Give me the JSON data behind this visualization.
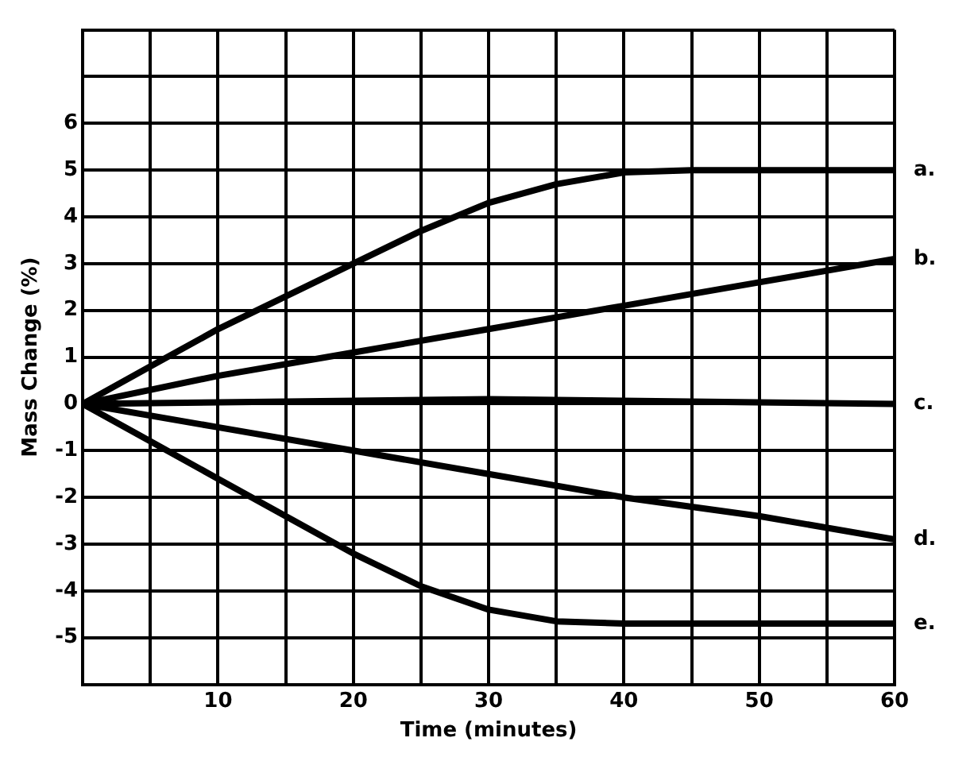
{
  "chart_data": {
    "type": "line",
    "xlabel": "Time (minutes)",
    "ylabel": "Mass Change (%)",
    "xlim": [
      0,
      60
    ],
    "ylim": [
      -6,
      8
    ],
    "xticks": [
      {
        "value": 0,
        "label": null
      },
      {
        "value": 5,
        "label": null
      },
      10,
      {
        "value": 15,
        "label": null
      },
      20,
      {
        "value": 25,
        "label": null
      },
      30,
      {
        "value": 35,
        "label": null
      },
      40,
      {
        "value": 45,
        "label": null
      },
      50,
      {
        "value": 55,
        "label": null
      },
      60
    ],
    "yticks": [
      {
        "value": -6,
        "label": null
      },
      -5,
      -4,
      -3,
      -2,
      -1,
      0,
      1,
      2,
      3,
      4,
      5,
      6,
      {
        "value": 7,
        "label": null
      },
      {
        "value": 8,
        "label": null
      }
    ],
    "grid": true,
    "legend": false,
    "marker": "none",
    "line_style": "solid",
    "series": [
      {
        "name": "a.",
        "color": "#000000",
        "x": [
          0,
          5,
          10,
          15,
          20,
          25,
          30,
          35,
          40,
          45,
          50,
          55,
          60
        ],
        "values": [
          0,
          0.8,
          1.6,
          2.3,
          3.0,
          3.7,
          4.3,
          4.7,
          4.95,
          5,
          5,
          5,
          5
        ]
      },
      {
        "name": "b.",
        "color": "#000000",
        "x": [
          0,
          10,
          20,
          30,
          40,
          50,
          60
        ],
        "values": [
          0,
          0.6,
          1.1,
          1.6,
          2.1,
          2.6,
          3.1
        ]
      },
      {
        "name": "c.",
        "color": "#000000",
        "x": [
          0,
          30,
          60
        ],
        "values": [
          0,
          0.1,
          0
        ]
      },
      {
        "name": "d.",
        "color": "#000000",
        "x": [
          0,
          10,
          20,
          30,
          40,
          50,
          60
        ],
        "values": [
          0,
          -0.5,
          -1,
          -1.5,
          -2,
          -2.4,
          -2.9
        ]
      },
      {
        "name": "e.",
        "color": "#000000",
        "x": [
          0,
          5,
          10,
          15,
          20,
          25,
          30,
          35,
          40,
          50,
          60
        ],
        "values": [
          0,
          -0.8,
          -1.6,
          -2.4,
          -3.2,
          -3.9,
          -4.4,
          -4.65,
          -4.7,
          -4.7,
          -4.7
        ]
      }
    ]
  }
}
